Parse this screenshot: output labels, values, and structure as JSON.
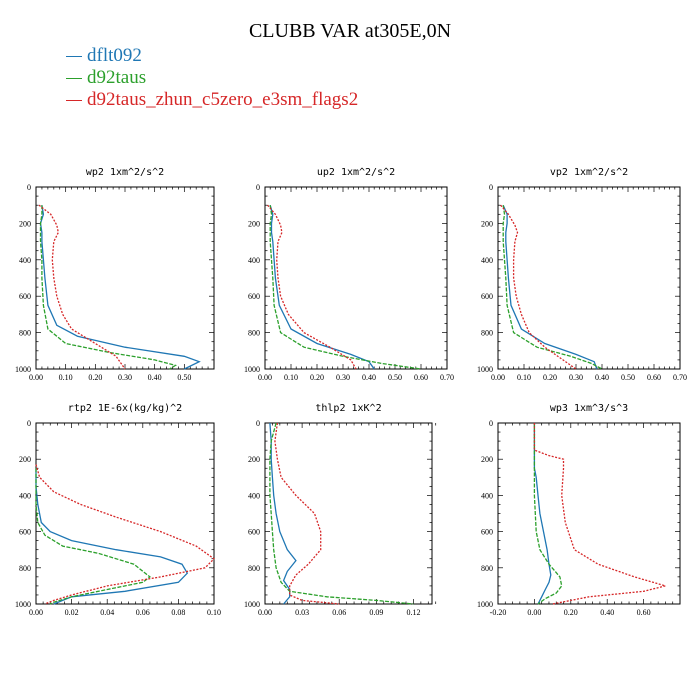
{
  "figure": {
    "title": "CLUBB VAR at305E,0N",
    "legend": [
      {
        "label": "dflt092",
        "color": "#1f77b4"
      },
      {
        "label": "d92taus",
        "color": "#2ca02c"
      },
      {
        "label": "d92taus_zhun_c5zero_e3sm_flags2",
        "color": "#d62728"
      }
    ]
  },
  "chart_data": [
    {
      "type": "line",
      "title": "wp2   1xm^2/s^2",
      "xlim": [
        0,
        0.6
      ],
      "ylim": [
        1000,
        0
      ],
      "xticks": [
        0,
        0.1,
        0.2,
        0.3,
        0.4,
        0.5
      ],
      "xtick_labels": [
        "0.00",
        "0.10",
        "0.20",
        "0.30",
        "0.40",
        "0.50"
      ],
      "yticks": [
        0,
        200,
        400,
        600,
        800,
        1000
      ],
      "series": [
        {
          "name": "dflt092",
          "color": "#1f77b4",
          "dashed": false,
          "x": [
            0.02,
            0.025,
            0.015,
            0.02,
            0.02,
            0.025,
            0.03,
            0.04,
            0.07,
            0.14,
            0.3,
            0.5,
            0.55,
            0.5
          ],
          "y": [
            100,
            150,
            200,
            250,
            300,
            400,
            500,
            650,
            760,
            820,
            880,
            930,
            960,
            1000
          ]
        },
        {
          "name": "d92taus",
          "color": "#2ca02c",
          "dashed": true,
          "x": [
            0.02,
            0.02,
            0.015,
            0.015,
            0.015,
            0.02,
            0.02,
            0.025,
            0.04,
            0.1,
            0.25,
            0.4,
            0.47,
            0.45
          ],
          "y": [
            100,
            150,
            200,
            250,
            300,
            400,
            500,
            650,
            780,
            860,
            910,
            950,
            980,
            1000
          ]
        },
        {
          "name": "d92taus_zhun_c5zero_e3sm_flags2",
          "color": "#d62728",
          "dashed": true,
          "x": [
            0.01,
            0.05,
            0.07,
            0.075,
            0.06,
            0.055,
            0.06,
            0.07,
            0.09,
            0.12,
            0.2,
            0.27,
            0.3
          ],
          "y": [
            100,
            150,
            210,
            250,
            300,
            400,
            500,
            600,
            700,
            780,
            860,
            930,
            1000
          ]
        }
      ]
    },
    {
      "type": "line",
      "title": "up2   1xm^2/s^2",
      "xlim": [
        0,
        0.7
      ],
      "ylim": [
        1000,
        0
      ],
      "xticks": [
        0,
        0.1,
        0.2,
        0.3,
        0.4,
        0.5,
        0.6,
        0.7
      ],
      "xtick_labels": [
        "0.00",
        "0.10",
        "0.20",
        "0.30",
        "0.40",
        "0.50",
        "0.60",
        "0.70"
      ],
      "yticks": [
        0,
        200,
        400,
        600,
        800,
        1000
      ],
      "series": [
        {
          "name": "dflt092",
          "color": "#1f77b4",
          "dashed": false,
          "x": [
            0.02,
            0.03,
            0.025,
            0.025,
            0.03,
            0.035,
            0.04,
            0.055,
            0.1,
            0.2,
            0.33,
            0.4,
            0.42
          ],
          "y": [
            100,
            150,
            200,
            250,
            300,
            400,
            500,
            650,
            780,
            860,
            920,
            960,
            1000
          ]
        },
        {
          "name": "d92taus",
          "color": "#2ca02c",
          "dashed": true,
          "x": [
            0.02,
            0.025,
            0.02,
            0.02,
            0.02,
            0.025,
            0.03,
            0.035,
            0.06,
            0.15,
            0.3,
            0.45,
            0.6
          ],
          "y": [
            100,
            150,
            200,
            250,
            300,
            400,
            500,
            650,
            800,
            880,
            930,
            970,
            1000
          ]
        },
        {
          "name": "d92taus_zhun_c5zero_e3sm_flags2",
          "color": "#d62728",
          "dashed": true,
          "x": [
            0.01,
            0.04,
            0.06,
            0.065,
            0.05,
            0.045,
            0.05,
            0.06,
            0.09,
            0.15,
            0.25,
            0.33,
            0.35
          ],
          "y": [
            100,
            150,
            210,
            250,
            300,
            400,
            500,
            600,
            700,
            800,
            880,
            950,
            1000
          ]
        }
      ]
    },
    {
      "type": "line",
      "title": "vp2   1xm^2/s^2",
      "xlim": [
        0,
        0.7
      ],
      "ylim": [
        1000,
        0
      ],
      "xticks": [
        0,
        0.1,
        0.2,
        0.3,
        0.4,
        0.5,
        0.6,
        0.7
      ],
      "xtick_labels": [
        "0.00",
        "0.10",
        "0.20",
        "0.30",
        "0.40",
        "0.50",
        "0.60",
        "0.70"
      ],
      "yticks": [
        0,
        200,
        400,
        600,
        800,
        1000
      ],
      "series": [
        {
          "name": "dflt092",
          "color": "#1f77b4",
          "dashed": false,
          "x": [
            0.02,
            0.035,
            0.035,
            0.03,
            0.03,
            0.035,
            0.04,
            0.05,
            0.09,
            0.18,
            0.3,
            0.37,
            0.38
          ],
          "y": [
            100,
            150,
            200,
            250,
            300,
            400,
            500,
            650,
            780,
            860,
            920,
            960,
            1000
          ]
        },
        {
          "name": "d92taus",
          "color": "#2ca02c",
          "dashed": true,
          "x": [
            0.02,
            0.025,
            0.02,
            0.02,
            0.02,
            0.025,
            0.03,
            0.035,
            0.06,
            0.15,
            0.28,
            0.36,
            0.4
          ],
          "y": [
            100,
            150,
            200,
            250,
            300,
            400,
            500,
            650,
            800,
            880,
            930,
            970,
            1000
          ]
        },
        {
          "name": "d92taus_zhun_c5zero_e3sm_flags2",
          "color": "#d62728",
          "dashed": true,
          "x": [
            0.01,
            0.04,
            0.065,
            0.075,
            0.065,
            0.06,
            0.06,
            0.07,
            0.09,
            0.12,
            0.18,
            0.25,
            0.3
          ],
          "y": [
            100,
            150,
            210,
            250,
            300,
            400,
            500,
            600,
            700,
            800,
            880,
            950,
            1000
          ]
        }
      ]
    },
    {
      "type": "line",
      "title": "rtp2   1E-6x(kg/kg)^2",
      "xlim": [
        0,
        0.1
      ],
      "ylim": [
        1000,
        0
      ],
      "xticks": [
        0,
        0.02,
        0.04,
        0.06,
        0.08,
        0.1
      ],
      "xtick_labels": [
        "0.00",
        "0.02",
        "0.04",
        "0.06",
        "0.08",
        "0.10"
      ],
      "yticks": [
        0,
        200,
        400,
        600,
        800,
        1000
      ],
      "series": [
        {
          "name": "dflt092",
          "color": "#1f77b4",
          "dashed": false,
          "x": [
            0,
            0,
            0.001,
            0.003,
            0.008,
            0.02,
            0.045,
            0.07,
            0.082,
            0.085,
            0.08,
            0.05,
            0.02,
            0.01
          ],
          "y": [
            250,
            350,
            450,
            550,
            600,
            650,
            700,
            740,
            780,
            830,
            880,
            930,
            960,
            1000
          ]
        },
        {
          "name": "d92taus",
          "color": "#2ca02c",
          "dashed": true,
          "x": [
            0,
            0,
            0,
            0.001,
            0.005,
            0.015,
            0.035,
            0.055,
            0.064,
            0.06,
            0.04,
            0.02,
            0.01,
            0.008
          ],
          "y": [
            250,
            350,
            450,
            550,
            620,
            680,
            720,
            780,
            850,
            880,
            920,
            960,
            990,
            1000
          ]
        },
        {
          "name": "d92taus_zhun_c5zero_e3sm_flags2",
          "color": "#d62728",
          "dashed": true,
          "x": [
            0,
            0.002,
            0.01,
            0.025,
            0.045,
            0.07,
            0.09,
            0.1,
            0.095,
            0.07,
            0.04,
            0.02,
            0.01,
            0.005
          ],
          "y": [
            230,
            300,
            380,
            450,
            520,
            600,
            680,
            750,
            800,
            850,
            900,
            950,
            980,
            1000
          ]
        }
      ]
    },
    {
      "type": "line",
      "title": "thlp2   1xK^2",
      "xlim": [
        0,
        0.135
      ],
      "ylim": [
        1000,
        0
      ],
      "xticks": [
        0,
        0.03,
        0.06,
        0.09,
        0.12
      ],
      "xtick_labels": [
        "0.00",
        "0.03",
        "0.06",
        "0.09",
        "0.12"
      ],
      "yticks": [
        0,
        200,
        400,
        600,
        800,
        1000
      ],
      "series": [
        {
          "name": "dflt092",
          "color": "#1f77b4",
          "dashed": false,
          "x": [
            0.004,
            0.005,
            0.005,
            0.006,
            0.007,
            0.009,
            0.012,
            0.018,
            0.025,
            0.018,
            0.015,
            0.02,
            0.02,
            0.015
          ],
          "y": [
            0,
            100,
            200,
            300,
            400,
            500,
            600,
            700,
            760,
            820,
            870,
            920,
            960,
            1000
          ]
        },
        {
          "name": "d92taus",
          "color": "#2ca02c",
          "dashed": true,
          "x": [
            0.009,
            0.005,
            0.004,
            0.004,
            0.004,
            0.005,
            0.006,
            0.007,
            0.009,
            0.013,
            0.02,
            0.05,
            0.09,
            0.12
          ],
          "y": [
            0,
            100,
            200,
            300,
            400,
            500,
            600,
            700,
            800,
            880,
            930,
            960,
            980,
            1000
          ]
        },
        {
          "name": "d92taus_zhun_c5zero_e3sm_flags2",
          "color": "#d62728",
          "dashed": true,
          "x": [
            0.01,
            0.008,
            0.01,
            0.013,
            0.025,
            0.04,
            0.045,
            0.045,
            0.035,
            0.025,
            0.02,
            0.02,
            0.03,
            0.06
          ],
          "y": [
            0,
            100,
            200,
            300,
            400,
            500,
            600,
            700,
            780,
            840,
            900,
            950,
            980,
            1000
          ]
        }
      ]
    },
    {
      "type": "line",
      "title": "wp3   1xm^3/s^3",
      "xlim": [
        -0.2,
        0.8
      ],
      "ylim": [
        1000,
        0
      ],
      "xticks": [
        -0.2,
        0,
        0.2,
        0.4,
        0.6
      ],
      "xtick_labels": [
        "-0.20",
        "0.00",
        "0.20",
        "0.40",
        "0.60"
      ],
      "yticks": [
        0,
        200,
        400,
        600,
        800,
        1000
      ],
      "series": [
        {
          "name": "dflt092",
          "color": "#1f77b4",
          "dashed": false,
          "x": [
            0,
            0,
            0,
            0.01,
            0.02,
            0.03,
            0.05,
            0.07,
            0.08,
            0.09,
            0.08,
            0.06,
            0.04,
            0.02
          ],
          "y": [
            0,
            150,
            250,
            300,
            400,
            500,
            600,
            700,
            780,
            840,
            880,
            920,
            960,
            1000
          ]
        },
        {
          "name": "d92taus",
          "color": "#2ca02c",
          "dashed": true,
          "x": [
            0,
            0,
            0,
            0,
            0,
            0.005,
            0.01,
            0.03,
            0.08,
            0.14,
            0.15,
            0.12,
            0.06,
            0.02
          ],
          "y": [
            0,
            150,
            250,
            300,
            400,
            500,
            600,
            700,
            780,
            850,
            900,
            940,
            970,
            1000
          ]
        },
        {
          "name": "d92taus_zhun_c5zero_e3sm_flags2",
          "color": "#d62728",
          "dashed": true,
          "x": [
            0,
            0,
            0.08,
            0.16,
            0.16,
            0.15,
            0.17,
            0.22,
            0.35,
            0.55,
            0.72,
            0.6,
            0.3,
            0.1
          ],
          "y": [
            0,
            150,
            180,
            200,
            250,
            400,
            550,
            700,
            780,
            850,
            900,
            930,
            960,
            1000
          ]
        }
      ]
    }
  ]
}
